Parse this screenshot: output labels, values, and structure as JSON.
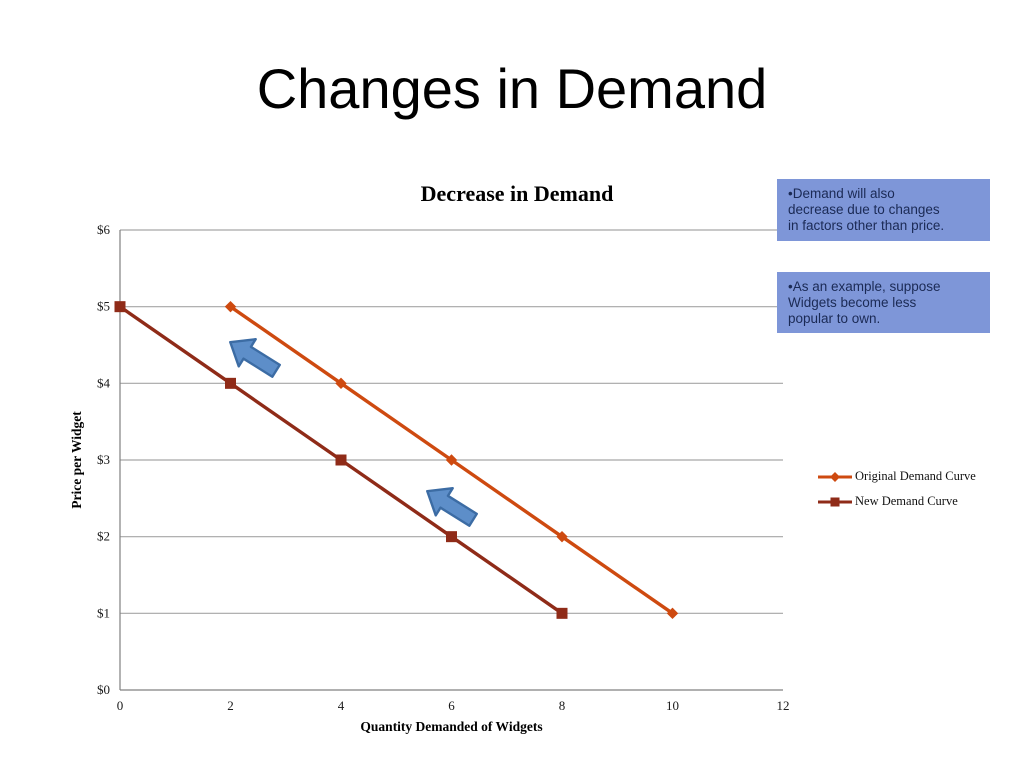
{
  "slide": {
    "title": "Changes in Demand"
  },
  "chart_data": {
    "type": "line",
    "title": "Decrease in Demand",
    "xlabel": "Quantity Demanded of Widgets",
    "ylabel": "Price per Widget",
    "xlim": [
      0,
      12
    ],
    "ylim": [
      0,
      6
    ],
    "x_ticks": [
      0,
      2,
      4,
      6,
      8,
      10,
      12
    ],
    "x_tick_labels": [
      "0",
      "2",
      "4",
      "6",
      "8",
      "10",
      "12"
    ],
    "y_ticks": [
      0,
      1,
      2,
      3,
      4,
      5,
      6
    ],
    "y_tick_labels": [
      "$0",
      "$1",
      "$2",
      "$3",
      "$4",
      "$5",
      "$6"
    ],
    "grid": "horizontal-only",
    "legend_position": "right",
    "series": [
      {
        "name": "Original Demand Curve",
        "marker": "diamond",
        "color": "#CE4A10",
        "points": [
          [
            2,
            5
          ],
          [
            4,
            4
          ],
          [
            6,
            3
          ],
          [
            8,
            2
          ],
          [
            10,
            1
          ]
        ]
      },
      {
        "name": "New Demand Curve",
        "marker": "square",
        "color": "#8F2B18",
        "points": [
          [
            0,
            5
          ],
          [
            2,
            4
          ],
          [
            4,
            3
          ],
          [
            6,
            2
          ],
          [
            8,
            1
          ]
        ]
      }
    ],
    "annotations": [
      {
        "type": "block-arrow",
        "direction": "down-left",
        "meaning": "shift from original to new curve (upper)"
      },
      {
        "type": "block-arrow",
        "direction": "down-left",
        "meaning": "shift from original to new curve (lower)"
      }
    ]
  },
  "callouts": [
    {
      "lines": [
        "•Demand will also",
        "decrease due to changes",
        "in factors other than price."
      ]
    },
    {
      "lines": [
        "•As an example, suppose",
        "Widgets become less",
        "popular to own."
      ]
    }
  ],
  "colors": {
    "callout_bg": "#7E96D8",
    "callout_text": "#1B2A55",
    "arrow_fill": "#5D8EC9",
    "arrow_stroke": "#3C6CA4",
    "gridline": "#A6A6A6",
    "axis": "#808080",
    "title_text": "#000000"
  }
}
